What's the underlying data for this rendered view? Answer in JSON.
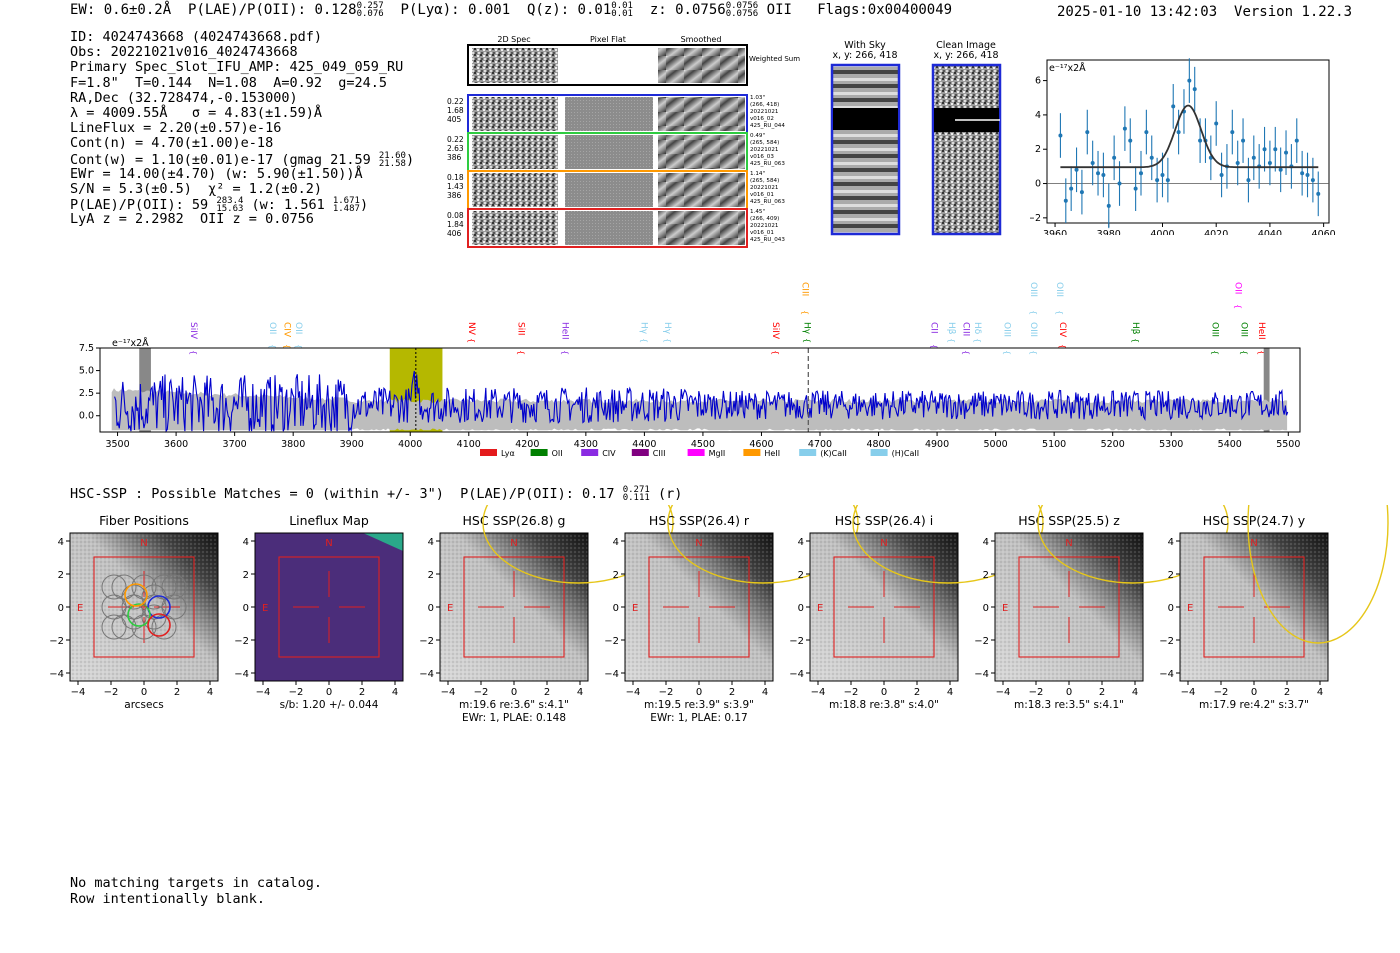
{
  "header": {
    "ew": "EW: 0.6±0.2Å",
    "plae_label": "P(LAE)/P(OII): 0.128",
    "plae_hi": "0.257",
    "plae_lo": "0.076",
    "plya": "P(Lyα): 0.001",
    "qz_label": "Q(z): 0.01",
    "qz_hi": "0.01",
    "qz_lo": "0.01",
    "z_label": "z: 0.0756",
    "z_hi": "0.0756",
    "z_lo": "0.0756",
    "z_line": "OII",
    "flags": "Flags:0x00400049",
    "datetime": "2025-01-10 13:42:03",
    "version": "Version 1.22.3"
  },
  "info": {
    "id": "ID: 4024743668 (4024743668.pdf)",
    "obs": "Obs: 20221021v016_4024743668",
    "primary": "Primary Spec_Slot_IFU_AMP: 425_049_059_RU",
    "fwhm": "F=1.8\"  T=0.144  N=1.08  A=0.92  g=24.5",
    "radec": "RA,Dec (32.728474,-0.153000)",
    "lambda": "λ = 4009.55Å   σ = 4.83(±1.59)Å",
    "lineflux": "LineFlux = 2.20(±0.57)e-16",
    "contn": "Cont(n) = 4.70(±1.00)e-18",
    "contw": "Cont(w) = 1.10(±0.01)e-17 (gmag 21.59",
    "contw_hi": "21.60",
    "contw_lo": "21.58",
    "ewr": "EWr = 14.00(±4.70) (w: 5.90(±1.50))Å",
    "sn": "S/N = 5.3(±0.5)  χ² = 1.2(±0.2)",
    "plae": "P(LAE)/P(OII): 59",
    "plae_hi": "283.4",
    "plae_lo": "15.63",
    "plae_w": "(w: 1.561",
    "plae_w_hi": "1.671",
    "plae_w_lo": "1.487",
    "lya_z": "LyA z = 2.2982  OII z = 0.0756"
  },
  "cutouts": {
    "col_headers": [
      "2D Spec",
      "Pixel Flat",
      "Smoothed"
    ],
    "weighted_sum": "Weighted Sum",
    "fibers": [
      {
        "color": "#1e2ad6",
        "left": [
          "0.22",
          "1.68",
          "405"
        ],
        "right": [
          "1.03\"",
          "(266, 418)",
          "20221021",
          "v016_02",
          "425_RU_044"
        ]
      },
      {
        "color": "#2ecc40",
        "left": [
          "0.22",
          "2.63",
          "386"
        ],
        "right": [
          "0.49\"",
          "(265, 584)",
          "20221021",
          "v016_03",
          "425_RU_063"
        ]
      },
      {
        "color": "#ff9900",
        "left": [
          "0.18",
          "1.43",
          "386"
        ],
        "right": [
          "1.14\"",
          "(265, 584)",
          "20221021",
          "v016_01",
          "425_RU_063"
        ]
      },
      {
        "color": "#e02020",
        "left": [
          "0.08",
          "1.84",
          "406"
        ],
        "right": [
          "1.45\"",
          "(266, 409)",
          "20221021",
          "v016_01",
          "425_RU_043"
        ]
      }
    ],
    "with_sky": "With Sky",
    "with_sky_xy": "x, y: 266, 418",
    "clean_image": "Clean Image",
    "clean_xy": "x, y: 266, 418"
  },
  "chart_data": [
    {
      "type": "scatter",
      "name": "zoom-line-fit",
      "unit_label": "e⁻¹⁷x2Å",
      "xlim": [
        3957,
        4062
      ],
      "ylim": [
        -2.3,
        7.2
      ],
      "xticks": [
        3960,
        3980,
        4000,
        4020,
        4040,
        4060
      ],
      "yticks": [
        -2,
        0,
        2,
        4,
        6
      ],
      "x": [
        3962,
        3964,
        3966,
        3968,
        3970,
        3972,
        3974,
        3976,
        3978,
        3980,
        3982,
        3984,
        3986,
        3988,
        3990,
        3992,
        3994,
        3996,
        3998,
        4000,
        4002,
        4004,
        4006,
        4008,
        4010,
        4012,
        4014,
        4016,
        4018,
        4020,
        4022,
        4024,
        4026,
        4028,
        4030,
        4032,
        4034,
        4036,
        4038,
        4040,
        4042,
        4044,
        4046,
        4048,
        4050,
        4052,
        4054,
        4056,
        4058
      ],
      "y": [
        2.8,
        -1.0,
        -0.3,
        0.8,
        -0.5,
        3.0,
        1.2,
        0.6,
        0.5,
        -1.3,
        1.5,
        0.0,
        3.2,
        2.5,
        -0.3,
        0.6,
        3.0,
        1.5,
        0.2,
        0.5,
        0.2,
        4.5,
        3.0,
        4.2,
        6.0,
        5.5,
        2.5,
        2.5,
        1.5,
        3.5,
        0.5,
        1.0,
        3.0,
        1.2,
        2.5,
        0.2,
        1.5,
        1.0,
        2.0,
        1.2,
        2.0,
        0.8,
        1.8,
        1.0,
        2.5,
        0.6,
        0.5,
        0.2,
        -0.6
      ],
      "yerr": 1.3,
      "fit": {
        "center": 4009.55,
        "sigma": 4.83,
        "amplitude": 3.6,
        "continuum": 0.95
      }
    },
    {
      "type": "line",
      "name": "full-spectrum",
      "unit_label": "e⁻¹⁷x2Å",
      "xlim": [
        3470,
        5520
      ],
      "ylim": [
        -1.8,
        7.5
      ],
      "xticks": [
        3500,
        3600,
        3700,
        3800,
        3900,
        4000,
        4100,
        4200,
        4300,
        4400,
        4500,
        4600,
        4700,
        4800,
        4900,
        5000,
        5100,
        5200,
        5300,
        5400,
        5500
      ],
      "yticks": [
        0.0,
        2.5,
        5.0,
        7.5
      ],
      "ytick_labels": [
        "0.0",
        "2.5",
        "5.0",
        "7.5"
      ],
      "highlight_window": [
        3965,
        4055
      ],
      "line_center": 4009.55,
      "dashed_line": 4680,
      "masked_bands": [
        [
          3537,
          3557
        ],
        [
          5458,
          5468
        ]
      ],
      "line_labels": [
        {
          "name": "SiIV",
          "x": 3620,
          "color": "#8a2be2",
          "row": 2
        },
        {
          "name": "OII",
          "x": 3755,
          "color": "#87ceeb",
          "row": 2
        },
        {
          "name": "CIV",
          "x": 3780,
          "color": "#ff9900",
          "row": 2
        },
        {
          "name": "OII",
          "x": 3800,
          "color": "#87ceeb",
          "row": 2
        },
        {
          "name": "NV",
          "x": 4095,
          "color": "#ff0000",
          "row": 2
        },
        {
          "name": "SiII",
          "x": 4180,
          "color": "#ff0000",
          "row": 2
        },
        {
          "name": "HeII",
          "x": 4255,
          "color": "#8a2be2",
          "row": 2
        },
        {
          "name": "Hγ",
          "x": 4390,
          "color": "#87ceeb",
          "row": 2
        },
        {
          "name": "Hγ",
          "x": 4430,
          "color": "#87ceeb",
          "row": 2
        },
        {
          "name": "SiIV",
          "x": 4615,
          "color": "#ff0000",
          "row": 2
        },
        {
          "name": "CIII",
          "x": 4665,
          "color": "#ff9900",
          "row": 1
        },
        {
          "name": "Hγ",
          "x": 4668,
          "color": "#008000",
          "row": 2
        },
        {
          "name": "CII",
          "x": 4885,
          "color": "#8a2be2",
          "row": 2
        },
        {
          "name": "Hβ",
          "x": 4915,
          "color": "#87ceeb",
          "row": 2
        },
        {
          "name": "CIII",
          "x": 4940,
          "color": "#8a2be2",
          "row": 2
        },
        {
          "name": "Hδ",
          "x": 4960,
          "color": "#87ceeb",
          "row": 2
        },
        {
          "name": "OIII",
          "x": 5010,
          "color": "#87ceeb",
          "row": 2
        },
        {
          "name": "OIII",
          "x": 5055,
          "color": "#87ceeb",
          "row": 1
        },
        {
          "name": "OIII",
          "x": 5055,
          "color": "#87ceeb",
          "row": 2
        },
        {
          "name": "OIII",
          "x": 5100,
          "color": "#87ceeb",
          "row": 1
        },
        {
          "name": "CIV",
          "x": 5105,
          "color": "#ff0000",
          "row": 2
        },
        {
          "name": "Hβ",
          "x": 5230,
          "color": "#008000",
          "row": 2
        },
        {
          "name": "OII",
          "x": 5405,
          "color": "#ff00ff",
          "row": 1
        },
        {
          "name": "OIII",
          "x": 5365,
          "color": "#008000",
          "row": 2
        },
        {
          "name": "OIII",
          "x": 5415,
          "color": "#008000",
          "row": 2
        },
        {
          "name": "HeII",
          "x": 5445,
          "color": "#ff0000",
          "row": 2
        }
      ],
      "legend": [
        {
          "label": "Lyα",
          "color": "#e41a1c"
        },
        {
          "label": "OII",
          "color": "#008000"
        },
        {
          "label": "CIV",
          "color": "#8a2be2"
        },
        {
          "label": "CIII",
          "color": "#800080"
        },
        {
          "label": "MgII",
          "color": "#ff00ff"
        },
        {
          "label": "HeII",
          "color": "#ff9900"
        },
        {
          "label": "(K)CaII",
          "color": "#87ceeb"
        },
        {
          "label": "(H)CaII",
          "color": "#87ceeb"
        }
      ]
    }
  ],
  "hsc": {
    "line_text": "HSC-SSP : Possible Matches = 0 (within +/- 3\")  P(LAE)/P(OII): 0.17",
    "line_hi": "0.271",
    "line_lo": "0.111",
    "line_suffix": "(r)",
    "panels": [
      {
        "title": "Fiber Positions",
        "xlabel": "arcsecs",
        "sub2": ""
      },
      {
        "title": "Lineflux Map",
        "xlabel": "s/b: 1.20 +/- 0.044",
        "sub2": ""
      },
      {
        "title": "HSC SSP(26.8) g",
        "xlabel": "m:19.6  re:3.6\"  s:4.1\"",
        "sub2": "EWr: 1, PLAE: 0.148"
      },
      {
        "title": "HSC SSP(26.4) r",
        "xlabel": "m:19.5  re:3.9\"  s:3.9\"",
        "sub2": "EWr: 1, PLAE: 0.17"
      },
      {
        "title": "HSC SSP(26.4) i",
        "xlabel": "m:18.8  re:3.8\"  s:4.0\"",
        "sub2": ""
      },
      {
        "title": "HSC SSP(25.5) z",
        "xlabel": "m:18.3  re:3.5\"  s:4.1\"",
        "sub2": ""
      },
      {
        "title": "HSC SSP(24.7) y",
        "xlabel": "m:17.9  re:4.2\"  s:3.7\"",
        "sub2": ""
      }
    ],
    "ticks": [
      "−4",
      "−2",
      "0",
      "2",
      "4"
    ],
    "north": "N",
    "east": "E"
  },
  "footer": {
    "line1": "No matching targets in catalog.",
    "line2": "Row intentionally blank."
  }
}
